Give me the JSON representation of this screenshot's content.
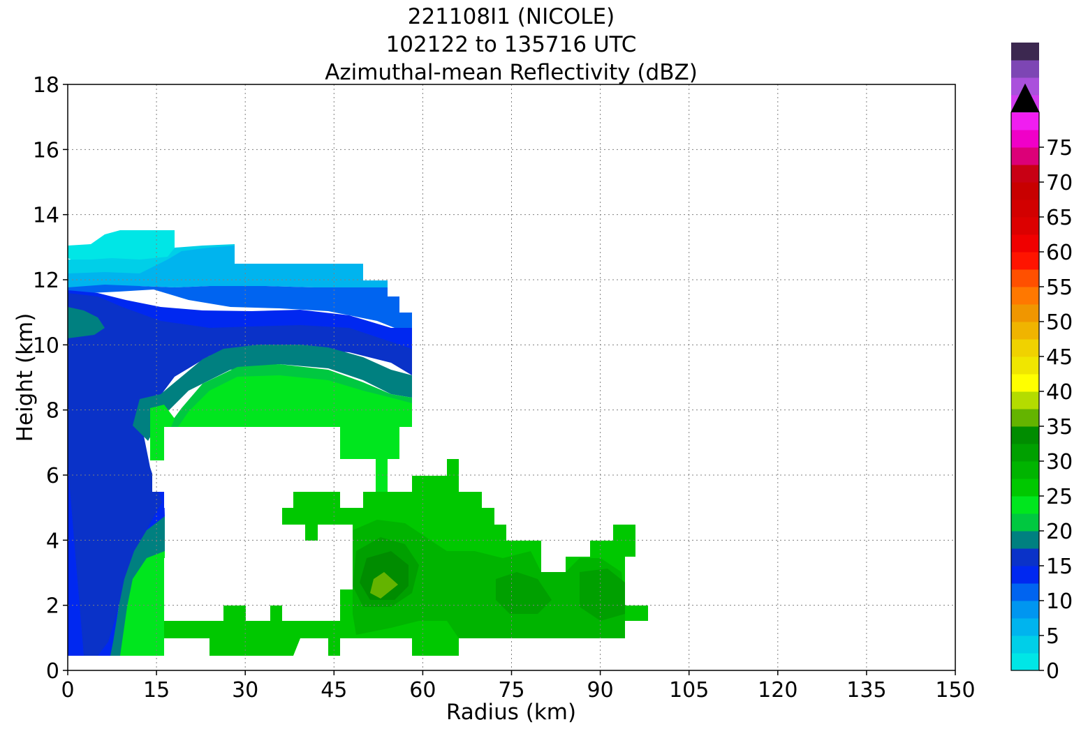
{
  "chart_data": {
    "type": "heatmap",
    "title_lines": [
      "221108I1 (NICOLE)",
      "102122 to 135716 UTC",
      "Azimuthal-mean Reflectivity (dBZ)"
    ],
    "xlabel": "Radius (km)",
    "ylabel": "Height (km)",
    "xlim": [
      0,
      150
    ],
    "ylim": [
      0,
      18
    ],
    "x_ticks": [
      "0",
      "15",
      "30",
      "45",
      "60",
      "75",
      "90",
      "105",
      "120",
      "135",
      "150"
    ],
    "y_ticks": [
      "0",
      "2",
      "4",
      "6",
      "8",
      "10",
      "12",
      "14",
      "16",
      "18"
    ],
    "grid": true,
    "colorbar": {
      "label": "dBZ",
      "range": [
        0,
        80
      ],
      "step": 2.5,
      "ticks": [
        "0",
        "5",
        "10",
        "15",
        "20",
        "25",
        "30",
        "35",
        "40",
        "45",
        "50",
        "55",
        "60",
        "65",
        "70",
        "75"
      ],
      "extend": "max",
      "colors": [
        "#00e6e6",
        "#00cfe8",
        "#00b4ee",
        "#0096f0",
        "#0064f0",
        "#0028f0",
        "#0a32c8",
        "#008080",
        "#00c840",
        "#00e61e",
        "#00c800",
        "#00b400",
        "#00a000",
        "#008c00",
        "#64b400",
        "#b4dc00",
        "#ffff00",
        "#f0e600",
        "#f0d200",
        "#f0b400",
        "#f09600",
        "#ff7800",
        "#ff5000",
        "#ff1400",
        "#f00000",
        "#dc0000",
        "#d20000",
        "#c80000",
        "#c80014",
        "#dc0078",
        "#f000c8",
        "#f01ef0",
        "#d23cf0",
        "#aa50dc",
        "#7d46b4",
        "#3c2850",
        "#000000"
      ]
    },
    "contours_kmheight_by_radius": [
      {
        "dbz": 2.5,
        "region": "upper cloud edge (cyan)",
        "x": [
          0,
          18
        ],
        "y": [
          12.6,
          13.5
        ]
      },
      {
        "dbz": 7.5,
        "region": "upper anvil (light blue)",
        "x": [
          0,
          53
        ],
        "y": [
          11.5,
          12.5
        ]
      },
      {
        "dbz": 11.0,
        "region": "mid-upper layer (blue)",
        "x": [
          0,
          58
        ],
        "y": [
          9.0,
          11.8
        ]
      },
      {
        "dbz": 15.0,
        "region": "teal band",
        "x": [
          0,
          58
        ],
        "y": [
          8.7,
          10.3
        ]
      },
      {
        "dbz": 20.0,
        "region": "bright green layer",
        "x": [
          14,
          58
        ],
        "y": [
          7.5,
          9.4
        ]
      },
      {
        "dbz": 25.0,
        "region": "low-level green rainband",
        "x": [
          9,
          98
        ],
        "y": [
          0.5,
          6.5
        ]
      },
      {
        "dbz": 30.0,
        "region": "max near 53 km",
        "x": [
          52,
          56
        ],
        "y": [
          2.3,
          2.9
        ]
      }
    ]
  }
}
